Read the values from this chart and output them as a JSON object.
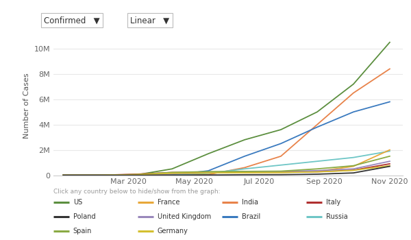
{
  "ylabel": "Number of Cases",
  "background_color": "#ffffff",
  "plot_bg_color": "#ffffff",
  "grid_color": "#e8e8e8",
  "ylim": [
    0,
    11000000
  ],
  "yticks": [
    0,
    2000000,
    4000000,
    6000000,
    8000000,
    10000000
  ],
  "ytick_labels": [
    "0",
    "2M",
    "4M",
    "6M",
    "8M",
    "10M"
  ],
  "xtick_labels": [
    "Mar 2020",
    "May 2020",
    "Jul 2020",
    "Sep 2020",
    "Nov 2020"
  ],
  "dropdown_texts": [
    "Confirmed",
    "Linear"
  ],
  "legend_header": "Click any country below to hide/show from the graph:",
  "countries": {
    "US": {
      "color": "#5c8f3f",
      "values": [
        0,
        0,
        15000,
        500000,
        1700000,
        2800000,
        3600000,
        5000000,
        7200000,
        10500000
      ]
    },
    "India": {
      "color": "#e8834a",
      "values": [
        0,
        0,
        1000,
        5000,
        50000,
        600000,
        1500000,
        4000000,
        6500000,
        8400000
      ]
    },
    "Brazil": {
      "color": "#3a7abf",
      "values": [
        0,
        0,
        0,
        10000,
        350000,
        1500000,
        2500000,
        3800000,
        5000000,
        5800000
      ]
    },
    "Russia": {
      "color": "#6ec6c6",
      "values": [
        0,
        0,
        0,
        5000,
        150000,
        500000,
        800000,
        1100000,
        1400000,
        1900000
      ]
    },
    "France": {
      "color": "#e8a83a",
      "values": [
        0,
        0,
        10000,
        150000,
        180000,
        200000,
        210000,
        300000,
        700000,
        2000000
      ]
    },
    "Italy": {
      "color": "#b03030",
      "values": [
        0,
        0,
        80000,
        220000,
        240000,
        245000,
        250000,
        270000,
        400000,
        900000
      ]
    },
    "United Kingdom": {
      "color": "#9988bb",
      "values": [
        0,
        0,
        5000,
        100000,
        200000,
        280000,
        300000,
        360000,
        500000,
        1100000
      ]
    },
    "Spain": {
      "color": "#8aaa44",
      "values": [
        0,
        0,
        50000,
        220000,
        285000,
        300000,
        320000,
        500000,
        750000,
        1500000
      ]
    },
    "Germany": {
      "color": "#d4c030",
      "values": [
        0,
        0,
        50000,
        150000,
        180000,
        200000,
        210000,
        260000,
        380000,
        750000
      ]
    },
    "Poland": {
      "color": "#333333",
      "values": [
        0,
        0,
        0,
        5000,
        15000,
        35000,
        40000,
        80000,
        180000,
        700000
      ]
    }
  },
  "legend_order": [
    "US",
    "France",
    "India",
    "Italy",
    "Poland",
    "United Kingdom",
    "Brazil",
    "Russia",
    "Spain",
    "Germany"
  ],
  "xtick_positions": [
    2,
    4,
    6,
    8,
    10
  ]
}
